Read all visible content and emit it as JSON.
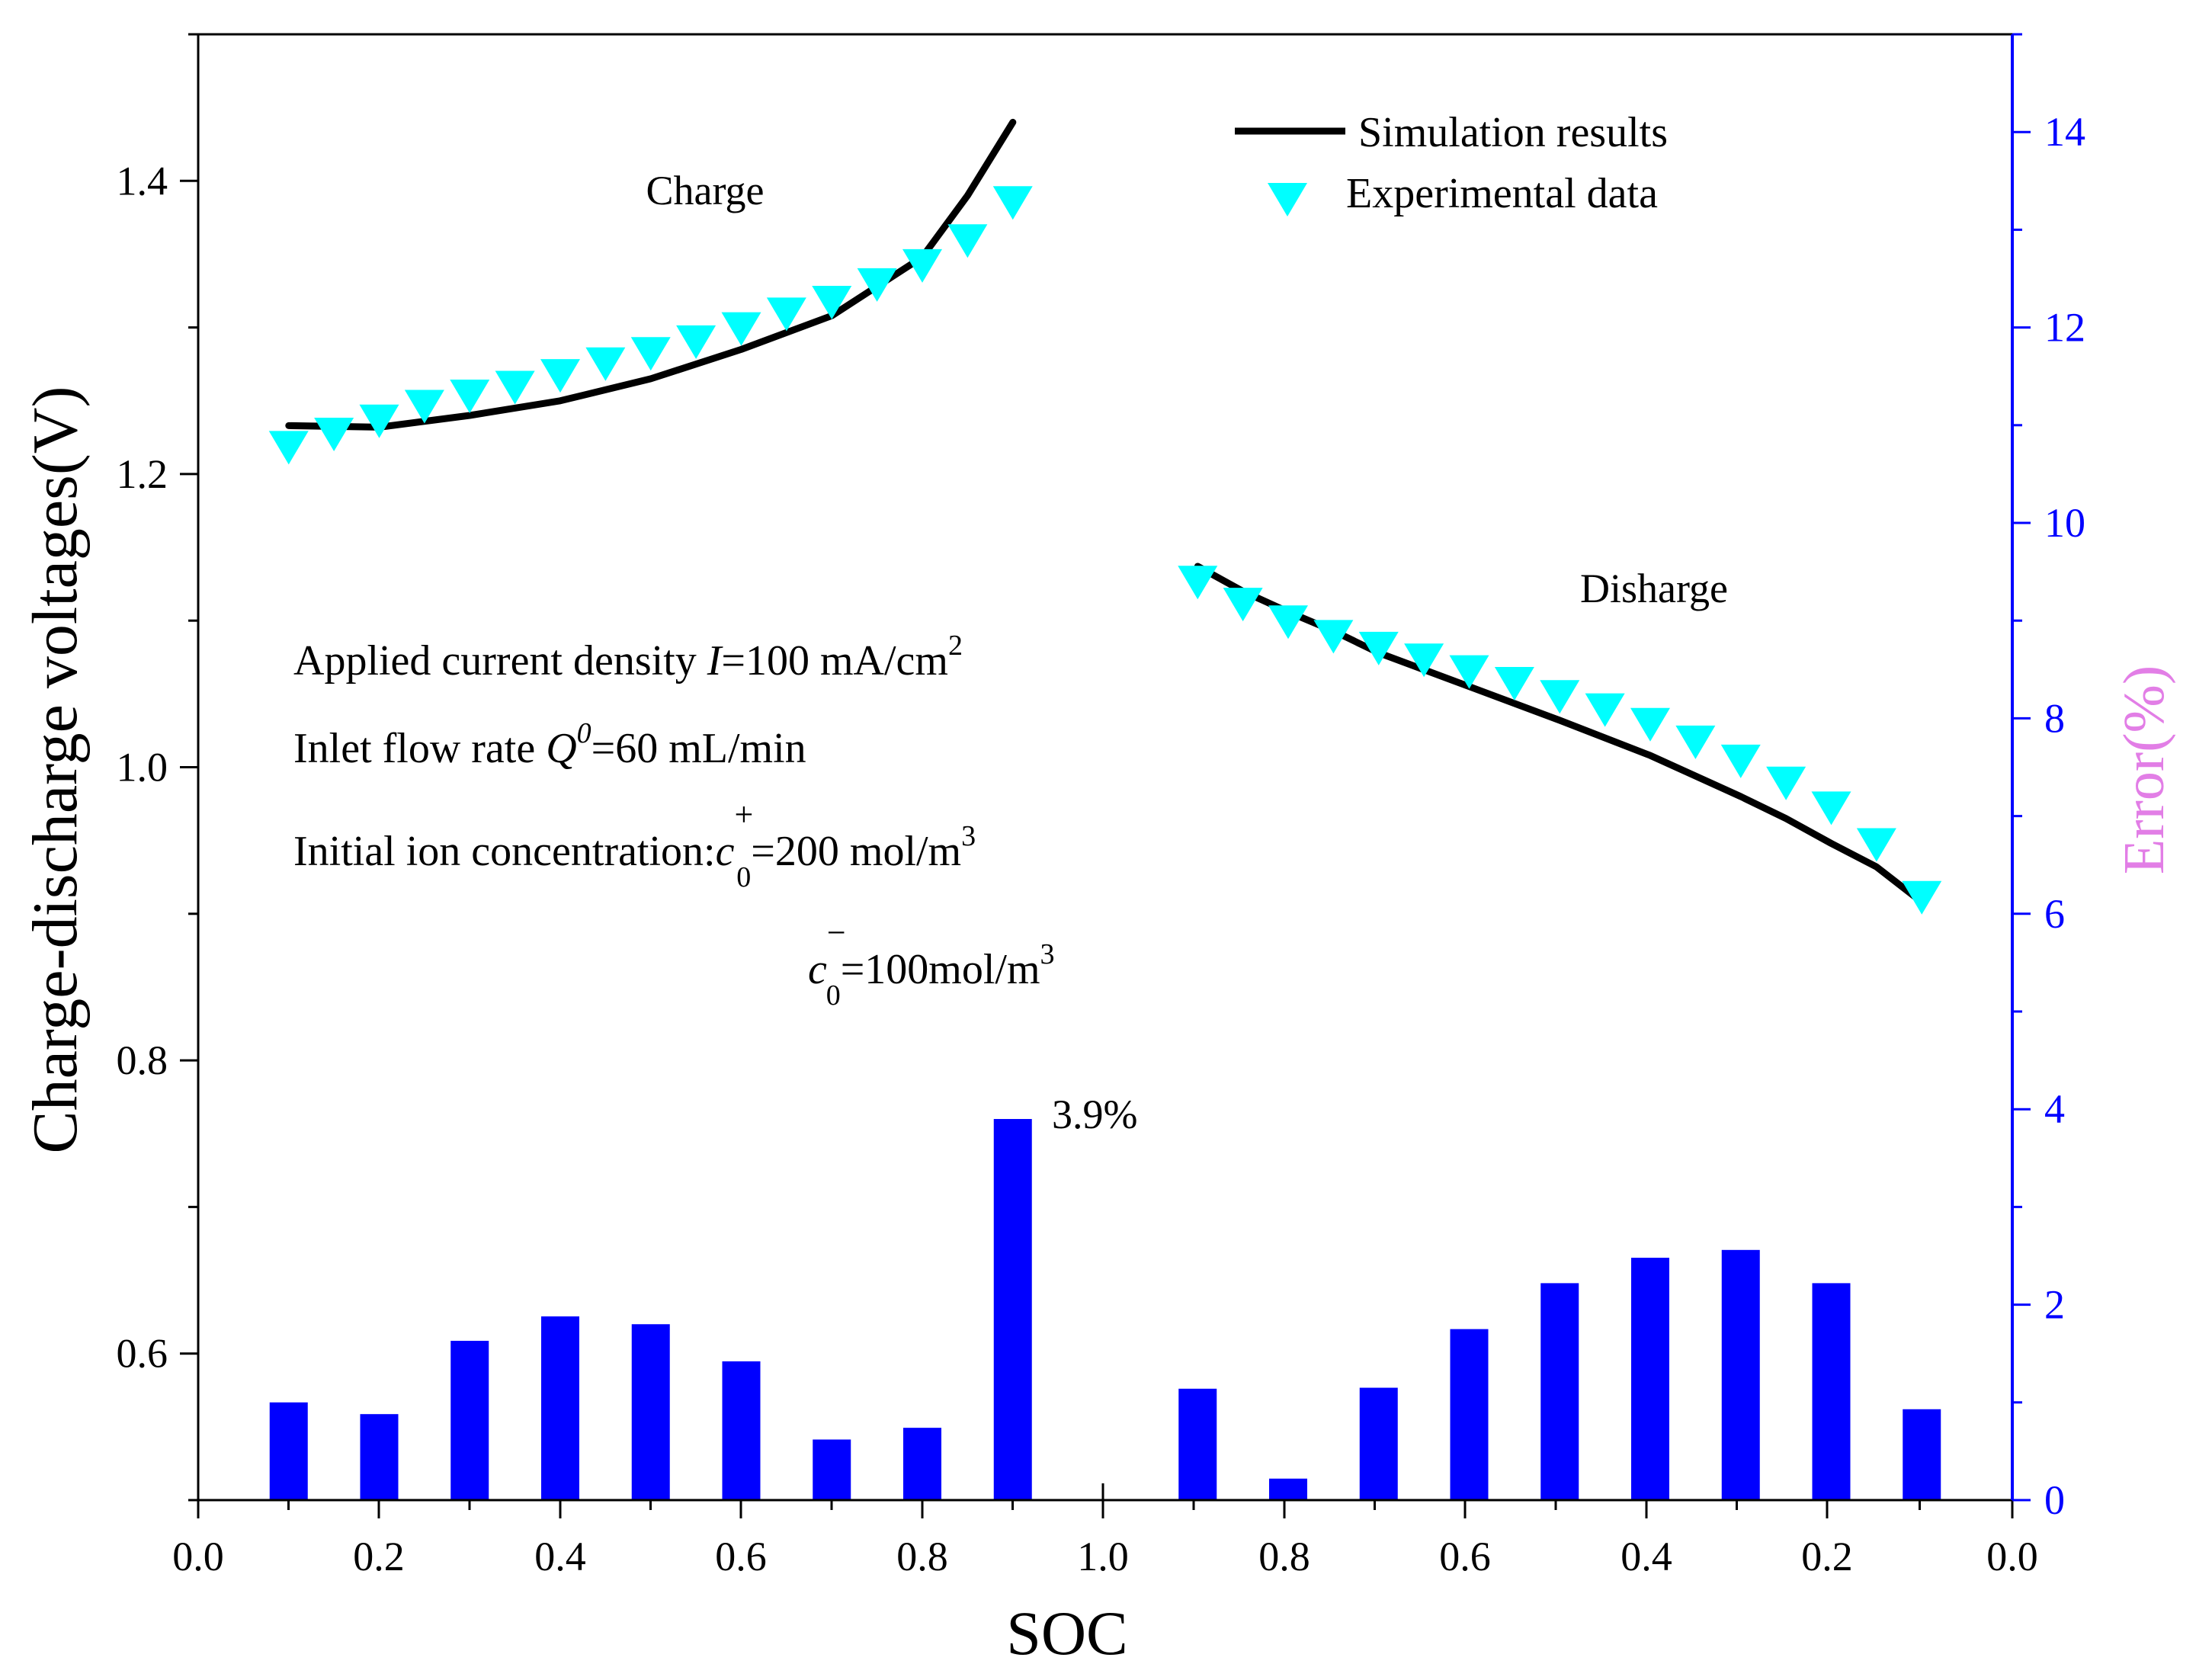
{
  "chart_data": {
    "type": "line",
    "x_axis": {
      "label": "SOC",
      "tick_labels": [
        "0.0",
        "0.2",
        "0.4",
        "0.6",
        "0.8",
        "1.0",
        "0.8",
        "0.6",
        "0.4",
        "0.2",
        "0.0"
      ]
    },
    "y_axis_left": {
      "label": "Charge-discharge voltages(V)",
      "ylim": [
        0.5,
        1.5
      ],
      "ticks": [
        0.6,
        0.8,
        1.0,
        1.2,
        1.4
      ],
      "tick_labels": [
        "0.6",
        "0.8",
        "1.0",
        "1.2",
        "1.4"
      ]
    },
    "y_axis_right": {
      "label": "Error(%)",
      "ylim": [
        0,
        15
      ],
      "ticks": [
        0,
        2,
        4,
        6,
        8,
        10,
        12,
        14
      ],
      "tick_labels": [
        "0",
        "2",
        "4",
        "6",
        "8",
        "10",
        "12",
        "14"
      ]
    },
    "legend": {
      "placement": "top-right",
      "entries": [
        {
          "name": "Simulation results",
          "marker": "line",
          "color": "#000000"
        },
        {
          "name": "Experimental data",
          "marker": "down-triangle",
          "color": "#00FFFF"
        }
      ]
    },
    "labels": {
      "charge": "Charge",
      "discharge": "Disharge",
      "bar_peak": "3.9%"
    },
    "conditions": {
      "line1": {
        "prefix": "Applied current density ",
        "var": "I",
        "value": "=100 mA/cm",
        "sup": "2"
      },
      "line2": {
        "prefix": "Inlet flow rate ",
        "var": "Q",
        "sup_var": "0",
        "value": "=60 mL/min"
      },
      "line3": {
        "prefix": "Initial ion concentration:",
        "var": "c",
        "sup": "+",
        "sub": "0",
        "value": "=200 mol/m",
        "unit_sup": "3"
      },
      "line4": {
        "var": "c",
        "sup": "−",
        "sub": "0",
        "value": "=100mol/m",
        "unit_sup": "3"
      }
    },
    "series": [
      {
        "name": "Simulation results (Charge)",
        "type": "line",
        "color": "#000000",
        "x": [
          0.1,
          0.2,
          0.3,
          0.4,
          0.5,
          0.6,
          0.7,
          0.8,
          0.85,
          0.9
        ],
        "y": [
          1.233,
          1.232,
          1.24,
          1.25,
          1.265,
          1.285,
          1.308,
          1.348,
          1.39,
          1.44
        ]
      },
      {
        "name": "Experimental data (Charge)",
        "type": "scatter",
        "color": "#00FFFF",
        "x": [
          0.1,
          0.15,
          0.2,
          0.25,
          0.3,
          0.35,
          0.4,
          0.45,
          0.5,
          0.55,
          0.6,
          0.65,
          0.7,
          0.75,
          0.8,
          0.85,
          0.9
        ],
        "y": [
          1.219,
          1.228,
          1.237,
          1.247,
          1.254,
          1.26,
          1.268,
          1.276,
          1.283,
          1.291,
          1.3,
          1.31,
          1.318,
          1.33,
          1.343,
          1.36,
          1.386
        ]
      },
      {
        "name": "Simulation results (Discharge)",
        "type": "line",
        "color": "#000000",
        "x": [
          0.9,
          0.85,
          0.8,
          0.75,
          0.7,
          0.6,
          0.5,
          0.4,
          0.3,
          0.25,
          0.2,
          0.15,
          0.1
        ],
        "y": [
          1.137,
          1.12,
          1.106,
          1.093,
          1.078,
          1.055,
          1.032,
          1.008,
          0.98,
          0.965,
          0.948,
          0.932,
          0.908
        ]
      },
      {
        "name": "Experimental data (Discharge)",
        "type": "scatter",
        "color": "#00FFFF",
        "x": [
          0.9,
          0.85,
          0.8,
          0.75,
          0.7,
          0.65,
          0.6,
          0.55,
          0.5,
          0.45,
          0.4,
          0.35,
          0.3,
          0.25,
          0.2,
          0.15,
          0.1
        ],
        "y": [
          1.127,
          1.112,
          1.1,
          1.09,
          1.082,
          1.074,
          1.066,
          1.058,
          1.049,
          1.04,
          1.03,
          1.018,
          1.005,
          0.99,
          0.973,
          0.948,
          0.912
        ]
      },
      {
        "name": "Error",
        "type": "bar",
        "axis": "right",
        "color": "#0000FF",
        "positions": [
          "charge 0.1",
          "charge 0.2",
          "charge 0.3",
          "charge 0.4",
          "charge 0.5",
          "charge 0.6",
          "charge 0.7",
          "charge 0.8",
          "charge 0.9",
          "discharge 0.9",
          "discharge 0.8",
          "discharge 0.7",
          "discharge 0.6",
          "discharge 0.5",
          "discharge 0.4",
          "discharge 0.3",
          "discharge 0.2",
          "discharge 0.1"
        ],
        "values": [
          1.0,
          0.88,
          1.63,
          1.88,
          1.8,
          1.42,
          0.62,
          0.74,
          3.9,
          1.14,
          0.22,
          1.15,
          1.75,
          2.22,
          2.48,
          2.56,
          2.22,
          0.93
        ]
      }
    ]
  }
}
